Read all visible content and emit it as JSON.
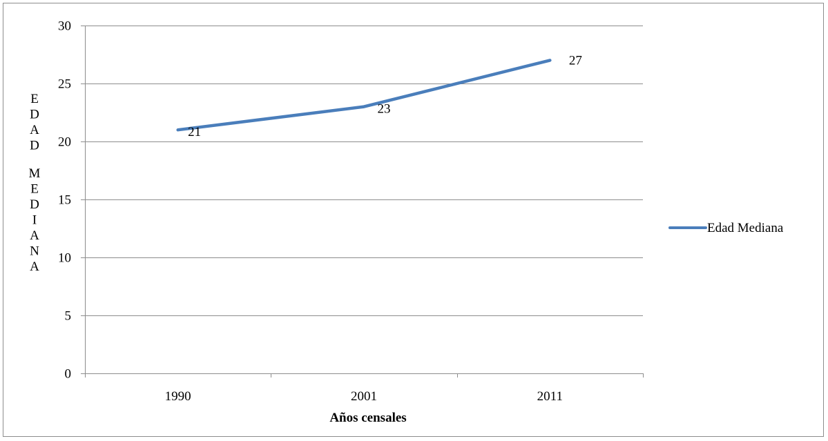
{
  "chart_data": {
    "type": "line",
    "title": "",
    "xlabel": "Años censales",
    "ylabel": "EDAD MEDIANA",
    "categories": [
      "1990",
      "2001",
      "2011"
    ],
    "series": [
      {
        "name": "Edad Mediana",
        "values": [
          21,
          23,
          27
        ],
        "color": "#4a7ebb"
      }
    ],
    "data_labels": [
      "21",
      "23",
      "27"
    ],
    "ylim": [
      0,
      30
    ],
    "yticks": [
      0,
      5,
      10,
      15,
      20,
      25,
      30
    ],
    "ytick_labels": [
      "0",
      "5",
      "10",
      "15",
      "20",
      "25",
      "30"
    ],
    "grid": "horizontal",
    "legend_position": "right"
  }
}
